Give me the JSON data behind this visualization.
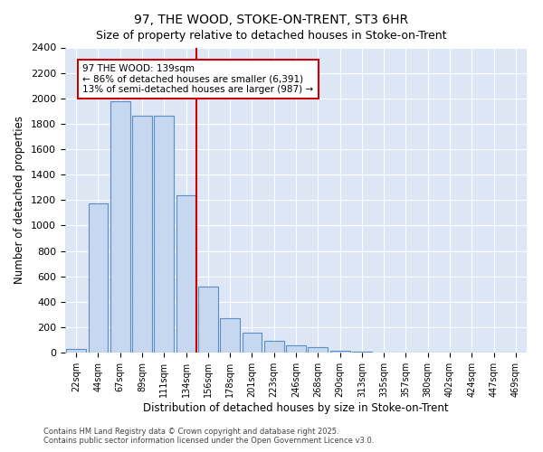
{
  "title": "97, THE WOOD, STOKE-ON-TRENT, ST3 6HR",
  "subtitle": "Size of property relative to detached houses in Stoke-on-Trent",
  "xlabel": "Distribution of detached houses by size in Stoke-on-Trent",
  "ylabel": "Number of detached properties",
  "categories": [
    "22sqm",
    "44sqm",
    "67sqm",
    "89sqm",
    "111sqm",
    "134sqm",
    "156sqm",
    "178sqm",
    "201sqm",
    "223sqm",
    "246sqm",
    "268sqm",
    "290sqm",
    "313sqm",
    "335sqm",
    "357sqm",
    "380sqm",
    "402sqm",
    "424sqm",
    "447sqm",
    "469sqm"
  ],
  "values": [
    28,
    1170,
    1980,
    1860,
    1860,
    1240,
    520,
    270,
    155,
    90,
    55,
    45,
    15,
    5,
    3,
    2,
    2,
    1,
    1,
    1,
    1
  ],
  "bar_color": "#c5d8f0",
  "bar_edge_color": "#5b8ec4",
  "vline_index": 5,
  "vline_color": "#cc0000",
  "annotation_text": "97 THE WOOD: 139sqm\n← 86% of detached houses are smaller (6,391)\n13% of semi-detached houses are larger (987) →",
  "annotation_box_color": "#ffffff",
  "annotation_box_edge": "#cc0000",
  "ylim": [
    0,
    2400
  ],
  "yticks": [
    0,
    200,
    400,
    600,
    800,
    1000,
    1200,
    1400,
    1600,
    1800,
    2000,
    2200,
    2400
  ],
  "background_color": "#dce6f5",
  "footer_line1": "Contains HM Land Registry data © Crown copyright and database right 2025.",
  "footer_line2": "Contains public sector information licensed under the Open Government Licence v3.0."
}
